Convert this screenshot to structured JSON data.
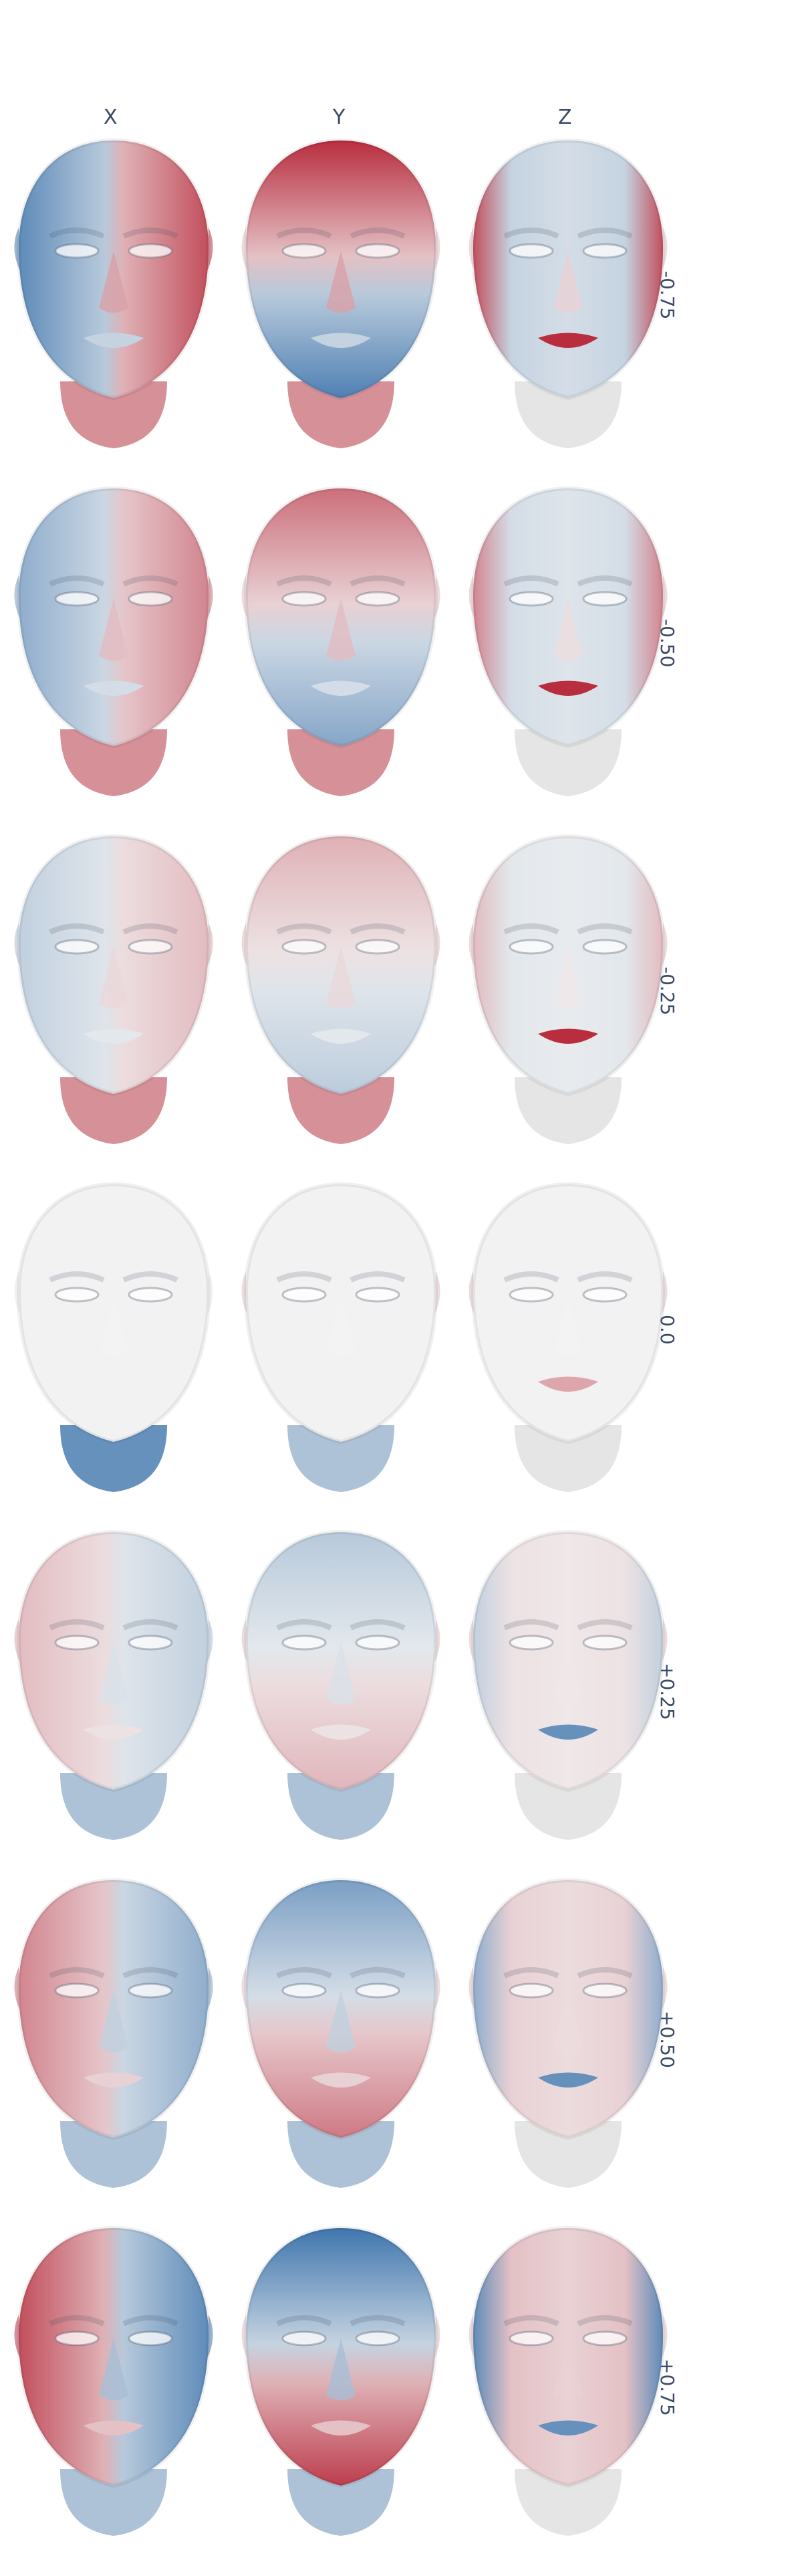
{
  "columns": [
    "X",
    "Y",
    "Z"
  ],
  "rows": [
    {
      "label": "-0.75"
    },
    {
      "label": "-0.50"
    },
    {
      "label": "-0.25"
    },
    {
      "label": "0.0"
    },
    {
      "label": "+0.25"
    },
    {
      "label": "+0.50"
    },
    {
      "label": "+0.75"
    }
  ],
  "colors": {
    "diverging_negative": "#2c68a6",
    "diverging_neutral": "#f2f2f2",
    "diverging_positive": "#b2182b",
    "text": "#3a4a66"
  }
}
